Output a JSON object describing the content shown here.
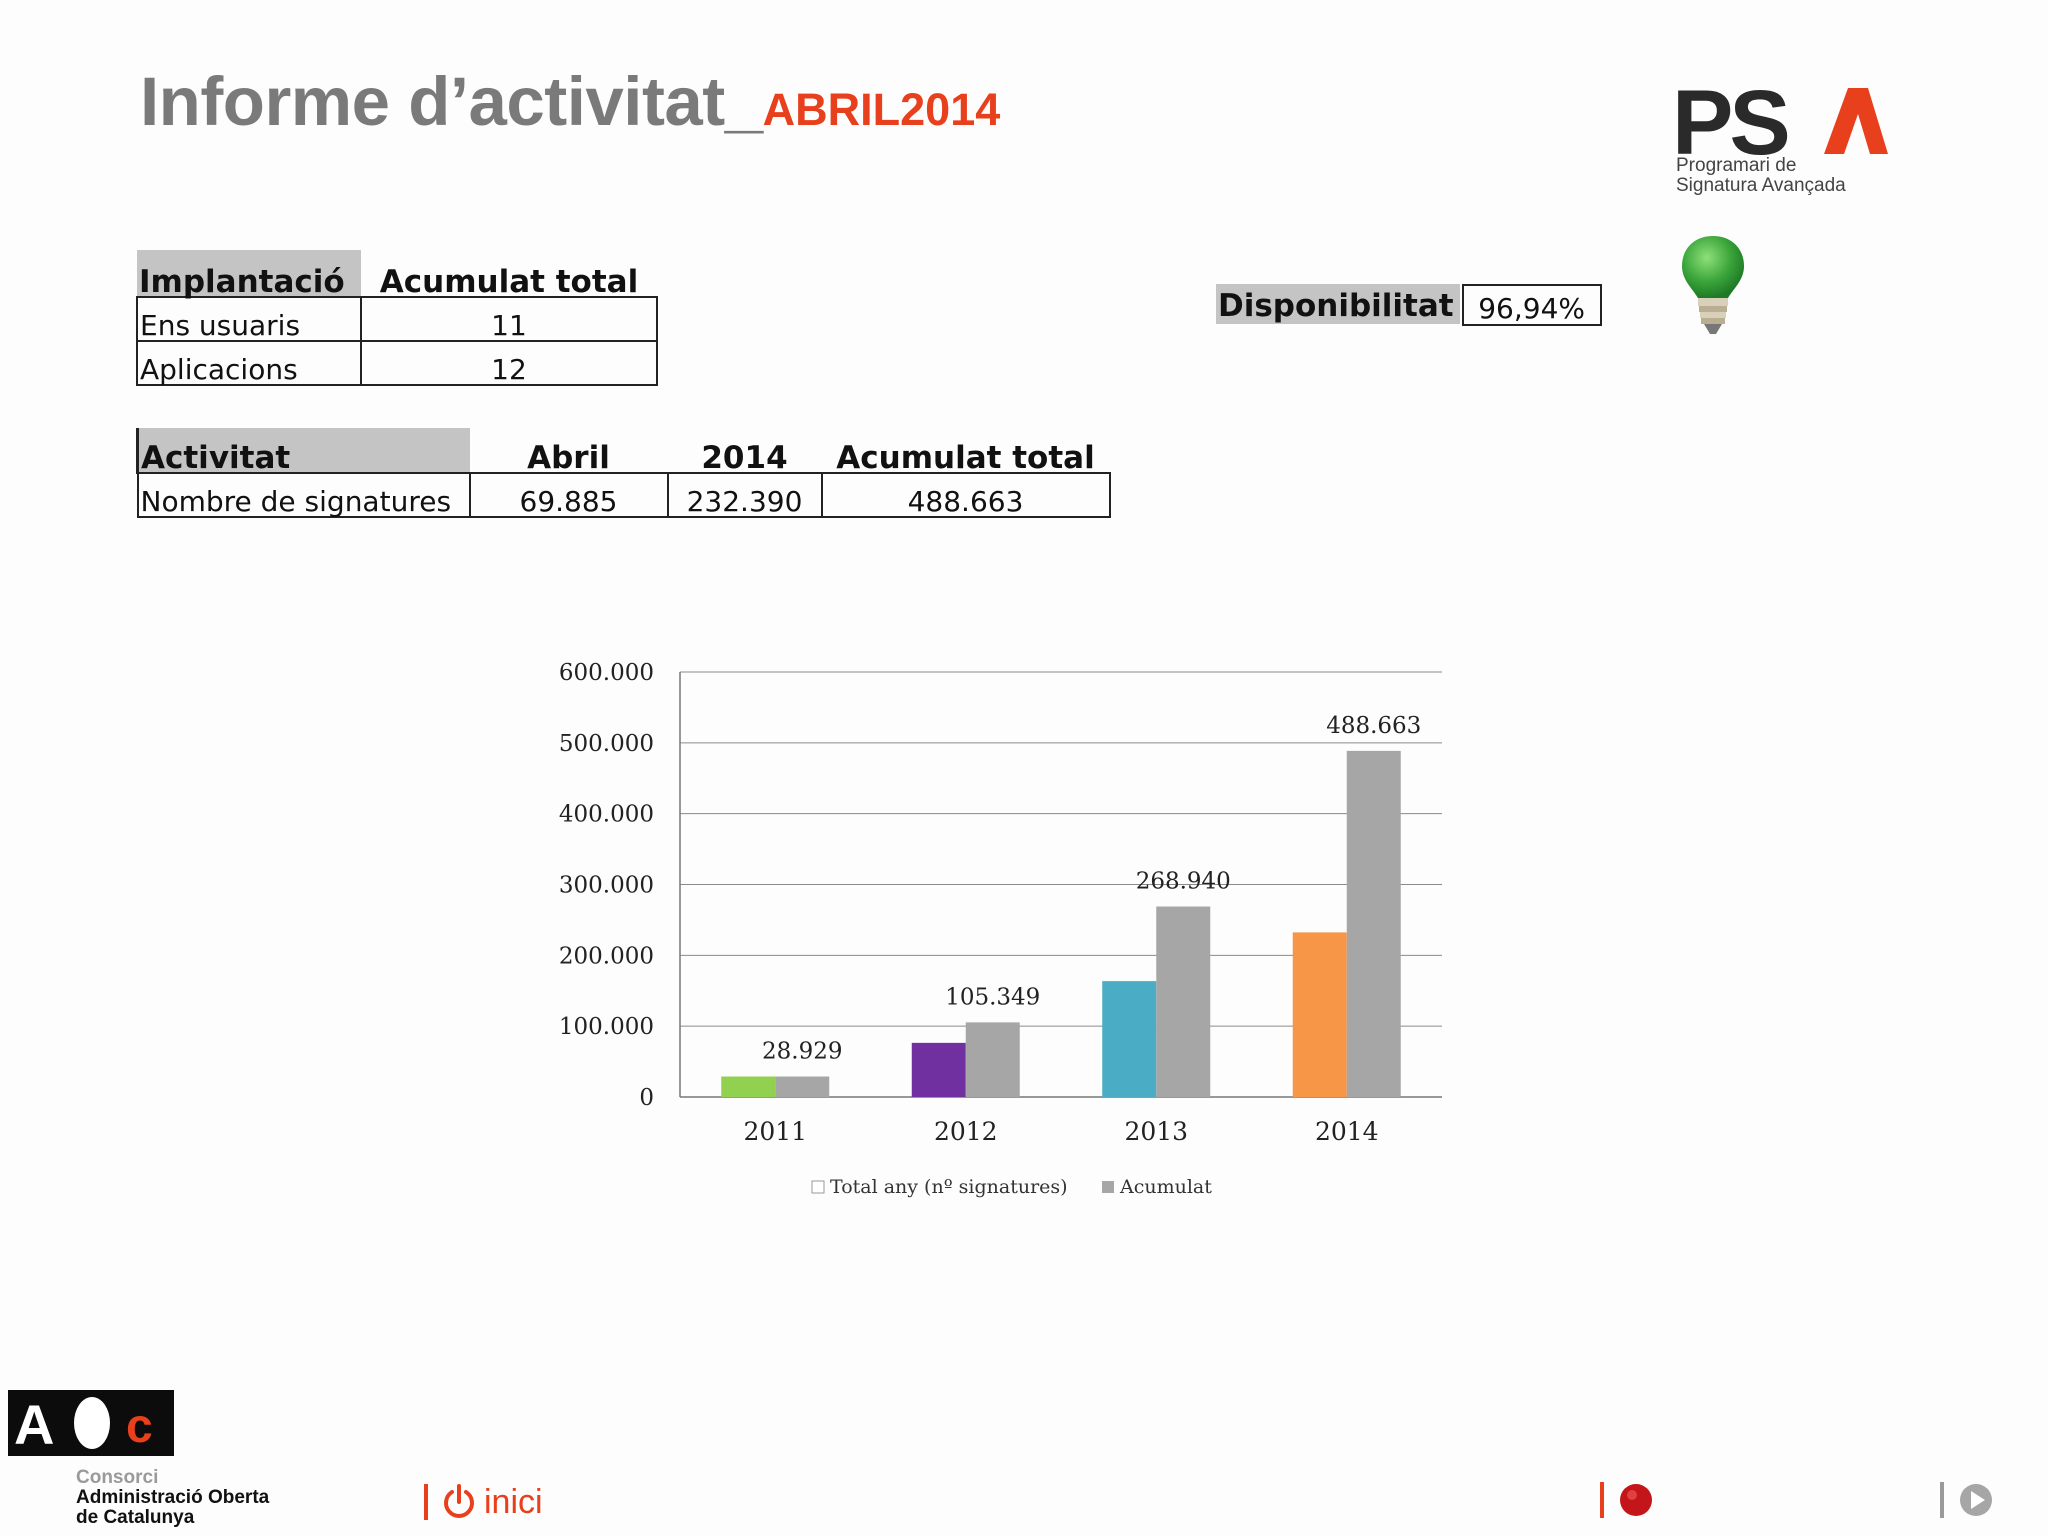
{
  "header": {
    "title_main": "Informe d’activitat_",
    "title_sub": "ABRIL2014"
  },
  "logo": {
    "mark": "PS",
    "caption_line1": "Programari de",
    "caption_line2": "Signatura Avançada"
  },
  "implantacio": {
    "header_label": "Implantació",
    "header_value": "Acumulat total",
    "rows": [
      {
        "label": "Ens usuaris",
        "value": "11"
      },
      {
        "label": "Aplicacions",
        "value": "12"
      }
    ]
  },
  "activitat": {
    "headers": [
      "Activitat",
      "Abril",
      "2014",
      "Acumulat total"
    ],
    "row": {
      "label": "Nombre de signatures",
      "abril": "69.885",
      "year": "232.390",
      "total": "488.663"
    }
  },
  "disponibilitat": {
    "label": "Disponibilitat",
    "value": "96,94%",
    "status_icon": "green-lightbulb-icon"
  },
  "chart_data": {
    "type": "bar",
    "categories": [
      "2011",
      "2012",
      "2013",
      "2014"
    ],
    "series": [
      {
        "name": "Total any (nº signatures)",
        "values": [
          28929,
          76420,
          163591,
          232390
        ],
        "colors": [
          "#92d050",
          "#7030a0",
          "#4bacc6",
          "#f79646"
        ]
      },
      {
        "name": "Acumulat",
        "values": [
          28929,
          105349,
          268940,
          488663
        ],
        "color": "#a6a6a6"
      }
    ],
    "data_labels": [
      "28.929",
      "105.349",
      "268.940",
      "488.663"
    ],
    "y_ticks": [
      "0",
      "100.000",
      "200.000",
      "300.000",
      "400.000",
      "500.000",
      "600.000"
    ],
    "ylim": [
      0,
      600000
    ],
    "grid": true,
    "legend_position": "bottom"
  },
  "footer": {
    "org_line1": "Consorci",
    "org_line2": "Administració Oberta",
    "org_line3": "de Catalunya",
    "inici_label": "inici",
    "icons": [
      "power-icon",
      "record-icon",
      "play-icon"
    ]
  }
}
